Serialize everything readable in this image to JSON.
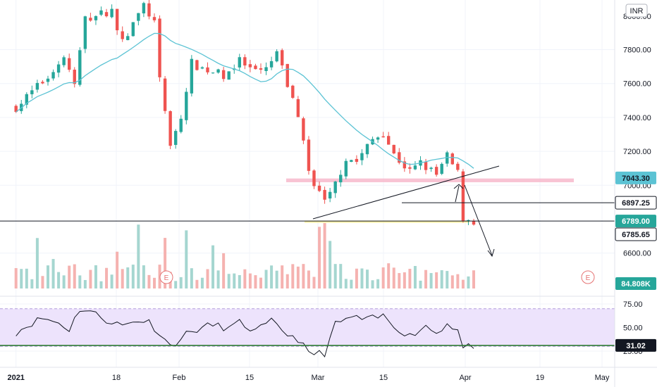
{
  "currency_badge": "INR",
  "colors": {
    "up": "#26a69a",
    "down": "#ef5350",
    "up_vol": "#a5d6d0",
    "down_vol": "#f5b2b0",
    "ma": "#5cc3d4",
    "rsi_line": "#131722",
    "rsi_band": "#ede3fc",
    "rsi_hline": "#2e7d32",
    "resistance_zone": "#f7b8cb",
    "support_zone": "#f5ec9b",
    "trendline": "#131722",
    "earnings": "#e57373",
    "tag_dark": "#131722",
    "tag_volume": "#26a69a",
    "tag_rsi": "#131722",
    "tag_ma": "#5cc3d4"
  },
  "chart_data": {
    "type": "candlestick",
    "price_axis": {
      "ticks": [
        "7800.00",
        "7600.00",
        "7400.00",
        "7200.00",
        "7000.00",
        "6600.00"
      ],
      "top_label": "8000.00"
    },
    "rsi_axis": {
      "ticks": [
        "75.00",
        "50.00",
        "25.00"
      ]
    },
    "x_ticks": [
      "2021",
      "18",
      "Feb",
      "15",
      "Mar",
      "15",
      "Apr",
      "19",
      "May"
    ],
    "price_tags": [
      {
        "label": "7043.30",
        "value": 7043.3,
        "style": "ma"
      },
      {
        "label": "6897.25",
        "value": 6897.25,
        "style": "dark"
      },
      {
        "label": "6789.00",
        "value": 6789.0,
        "style": "up"
      },
      {
        "label": "6785.65",
        "value": 6785.65,
        "style": "dark"
      }
    ],
    "volume_tag": "84.808K",
    "rsi_tag": "31.02",
    "rsi_tag_value": 31.02,
    "earnings_marker": "E",
    "annotations": {
      "horizontal_line": 6789,
      "short_line": 6897.25,
      "resistance_zone": [
        7018,
        7040
      ],
      "support_zone": [
        6779,
        6791
      ]
    },
    "anchors": [
      [
        "2021-01-01",
        7460
      ],
      [
        "2021-01-07",
        7640
      ],
      [
        "2021-01-10",
        7760
      ],
      [
        "2021-01-12",
        7590
      ],
      [
        "2021-01-14",
        7980
      ],
      [
        "2021-01-19",
        8030
      ],
      [
        "2021-01-21",
        7840
      ],
      [
        "2021-01-25",
        8060
      ],
      [
        "2021-01-27",
        7960
      ],
      [
        "2021-01-28",
        7610
      ],
      [
        "2021-01-30",
        7250
      ],
      [
        "2021-02-01",
        7390
      ],
      [
        "2021-02-03",
        7720
      ],
      [
        "2021-02-05",
        7690
      ],
      [
        "2021-02-09",
        7650
      ],
      [
        "2021-02-12",
        7730
      ],
      [
        "2021-02-15",
        7660
      ],
      [
        "2021-02-17",
        7680
      ],
      [
        "2021-02-19",
        7780
      ],
      [
        "2021-02-21",
        7590
      ],
      [
        "2021-02-23",
        7420
      ],
      [
        "2021-02-25",
        7080
      ],
      [
        "2021-02-27",
        6960
      ],
      [
        "2021-02-28",
        6920
      ],
      [
        "2021-03-02",
        7010
      ],
      [
        "2021-03-04",
        7160
      ],
      [
        "2021-03-06",
        7140
      ],
      [
        "2021-03-09",
        7270
      ],
      [
        "2021-03-11",
        7310
      ],
      [
        "2021-03-13",
        7180
      ],
      [
        "2021-03-16",
        7080
      ],
      [
        "2021-03-18",
        7130
      ],
      [
        "2021-03-21",
        7060
      ],
      [
        "2021-03-23",
        7170
      ],
      [
        "2021-03-25",
        7070
      ],
      [
        "2021-03-26",
        6810
      ],
      [
        "2021-03-27",
        6800
      ],
      [
        "2021-03-28",
        6789
      ]
    ],
    "rsi_anchors": [
      [
        "2021-01-01",
        45
      ],
      [
        "2021-01-04",
        55
      ],
      [
        "2021-01-06",
        60
      ],
      [
        "2021-01-09",
        55
      ],
      [
        "2021-01-11",
        48
      ],
      [
        "2021-01-13",
        70
      ],
      [
        "2021-01-15",
        67
      ],
      [
        "2021-01-18",
        58
      ],
      [
        "2021-01-21",
        52
      ],
      [
        "2021-01-24",
        58
      ],
      [
        "2021-01-26",
        56
      ],
      [
        "2021-01-28",
        44
      ],
      [
        "2021-01-30",
        30
      ],
      [
        "2021-02-02",
        43
      ],
      [
        "2021-02-04",
        48
      ],
      [
        "2021-02-07",
        53
      ],
      [
        "2021-02-10",
        49
      ],
      [
        "2021-02-12",
        55
      ],
      [
        "2021-02-15",
        46
      ],
      [
        "2021-02-18",
        56
      ],
      [
        "2021-02-21",
        43
      ],
      [
        "2021-02-23",
        38
      ],
      [
        "2021-02-25",
        22
      ],
      [
        "2021-02-28",
        23
      ],
      [
        "2021-03-02",
        53
      ],
      [
        "2021-03-05",
        61
      ],
      [
        "2021-03-08",
        58
      ],
      [
        "2021-03-11",
        62
      ],
      [
        "2021-03-13",
        52
      ],
      [
        "2021-03-16",
        41
      ],
      [
        "2021-03-19",
        52
      ],
      [
        "2021-03-21",
        44
      ],
      [
        "2021-03-23",
        55
      ],
      [
        "2021-03-25",
        47
      ],
      [
        "2021-03-26",
        28
      ],
      [
        "2021-03-28",
        31
      ]
    ]
  }
}
